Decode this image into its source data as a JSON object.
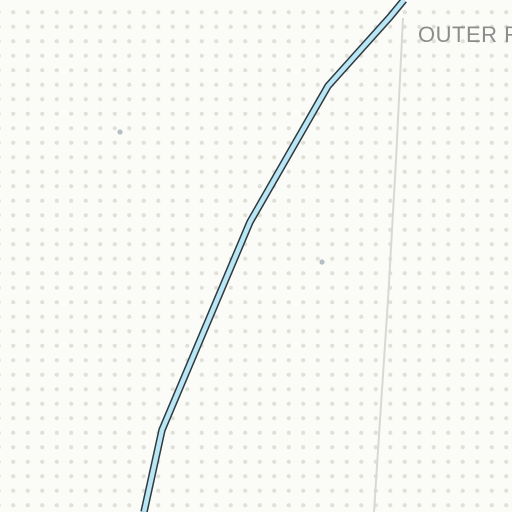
{
  "map": {
    "place_label": "OUTER R",
    "colors": {
      "background": "#fbfbf8",
      "dots": "#e0e0d8",
      "waterway_fill": "#b9e6f5",
      "waterway_casing": "#2f3a40",
      "boundary_line": "#d8d8d4",
      "poi_marker": "#b7bec4",
      "label": "#8c8c8c"
    },
    "features": [
      {
        "type": "waterway",
        "name": "waterway-line"
      },
      {
        "type": "boundary",
        "name": "boundary-line"
      },
      {
        "type": "poi",
        "name": "poi-marker"
      },
      {
        "type": "poi",
        "name": "poi-marker"
      }
    ]
  }
}
